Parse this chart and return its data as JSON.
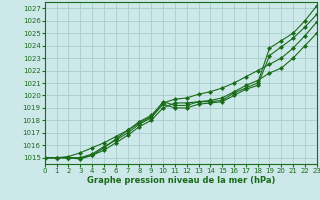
{
  "title": "Graphe pression niveau de la mer (hPa)",
  "background_color": "#cce8e8",
  "grid_color": "#aacccc",
  "line_color": "#1a6b1a",
  "xlim": [
    0,
    23
  ],
  "ylim": [
    1014.5,
    1027.5
  ],
  "yticks": [
    1015,
    1016,
    1017,
    1018,
    1019,
    1020,
    1021,
    1022,
    1023,
    1024,
    1025,
    1026,
    1027
  ],
  "xticks": [
    0,
    1,
    2,
    3,
    4,
    5,
    6,
    7,
    8,
    9,
    10,
    11,
    12,
    13,
    14,
    15,
    16,
    17,
    18,
    19,
    20,
    21,
    22,
    23
  ],
  "series": [
    [
      1015.0,
      1015.0,
      1015.0,
      1015.0,
      1015.2,
      1015.8,
      1016.5,
      1017.2,
      1017.8,
      1018.3,
      1019.5,
      1019.2,
      1019.2,
      1019.5,
      1019.5,
      1019.6,
      1020.2,
      1020.6,
      1021.0,
      1023.8,
      1024.4,
      1025.0,
      1026.0,
      1027.2
    ],
    [
      1015.0,
      1015.0,
      1015.0,
      1015.0,
      1015.3,
      1015.9,
      1016.4,
      1017.0,
      1017.7,
      1018.2,
      1019.3,
      1019.0,
      1019.0,
      1019.3,
      1019.4,
      1019.5,
      1020.0,
      1020.5,
      1020.8,
      1023.2,
      1023.9,
      1024.6,
      1025.5,
      1026.5
    ],
    [
      1015.0,
      1015.0,
      1015.0,
      1014.9,
      1015.2,
      1015.6,
      1016.2,
      1016.8,
      1017.5,
      1018.0,
      1019.0,
      1019.4,
      1019.4,
      1019.5,
      1019.6,
      1019.8,
      1020.3,
      1020.8,
      1021.2,
      1021.8,
      1022.2,
      1023.0,
      1024.0,
      1025.0
    ],
    [
      1015.0,
      1015.0,
      1015.1,
      1015.4,
      1015.8,
      1016.2,
      1016.7,
      1017.2,
      1017.9,
      1018.4,
      1019.4,
      1019.7,
      1019.8,
      1020.1,
      1020.3,
      1020.6,
      1021.0,
      1021.5,
      1022.0,
      1022.5,
      1023.0,
      1023.8,
      1024.8,
      1025.9
    ]
  ],
  "marker": "D",
  "markersize": 2.0,
  "linewidth": 0.8,
  "title_fontsize": 6,
  "tick_fontsize": 5
}
